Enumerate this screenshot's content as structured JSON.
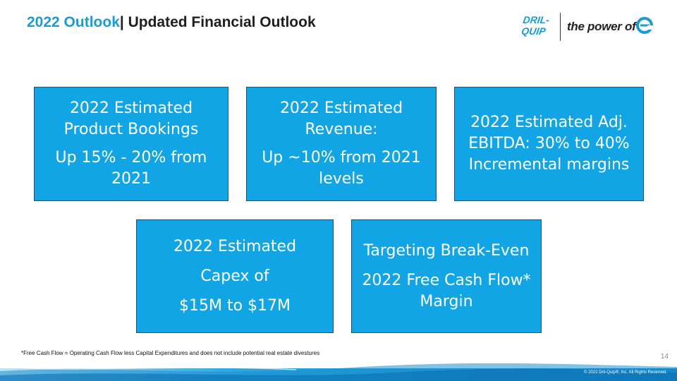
{
  "header": {
    "title_accent": "2022 Outlook",
    "title_rest": "| Updated Financial Outlook"
  },
  "logo": {
    "mark_line1": "DRIL-",
    "mark_line2": "QUIP",
    "tagline": "the power of"
  },
  "boxes": [
    {
      "line1": "2022 Estimated Product Bookings",
      "line2": "Up 15% - 20% from 2021"
    },
    {
      "line1": "2022 Estimated Revenue:",
      "line2": "Up ~10% from 2021 levels"
    },
    {
      "line1": "2022 Estimated Adj. EBITDA: 30% to 40% Incremental margins"
    },
    {
      "line1": "2022 Estimated",
      "line2": "Capex of",
      "line3": "$15M to $17M"
    },
    {
      "line1": "Targeting Break-Even",
      "line2": "2022 Free Cash Flow* Margin"
    }
  ],
  "footer": {
    "footnote": "*Free Cash Flow = Operating Cash Flow less Capital Expenditures and does not include potential real estate divestures",
    "page_number": "14",
    "copyright": "© 2022 Dril-Quip®, Inc. All Rights Reserved."
  },
  "colors": {
    "accent": "#1a9ad6",
    "box_fill": "#12a5e5",
    "box_border": "#1d4e78"
  }
}
